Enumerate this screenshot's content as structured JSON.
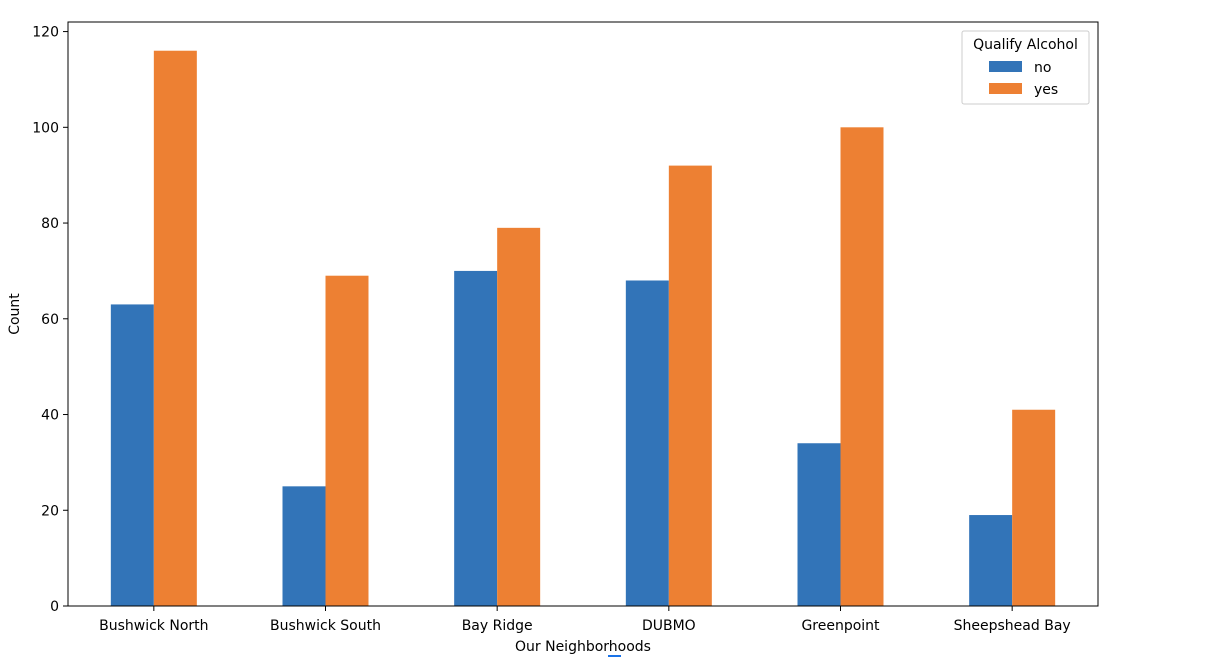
{
  "chart_data": {
    "type": "bar",
    "title": "",
    "xlabel": "Our Neighborhoods",
    "ylabel": "Count",
    "categories": [
      "Bushwick North",
      "Bushwick South",
      "Bay Ridge",
      "DUBMO",
      "Greenpoint",
      "Sheepshead Bay"
    ],
    "series": [
      {
        "name": "no",
        "color": "#3274b8",
        "values": [
          63,
          25,
          70,
          68,
          34,
          19
        ]
      },
      {
        "name": "yes",
        "color": "#ed8033",
        "values": [
          116,
          69,
          79,
          92,
          100,
          41
        ]
      }
    ],
    "ylim": [
      0,
      122
    ],
    "yticks": [
      0,
      20,
      40,
      60,
      80,
      100,
      120
    ],
    "grid": false,
    "legend": {
      "title": "Qualify Alcohol",
      "placement": "top-right"
    }
  }
}
